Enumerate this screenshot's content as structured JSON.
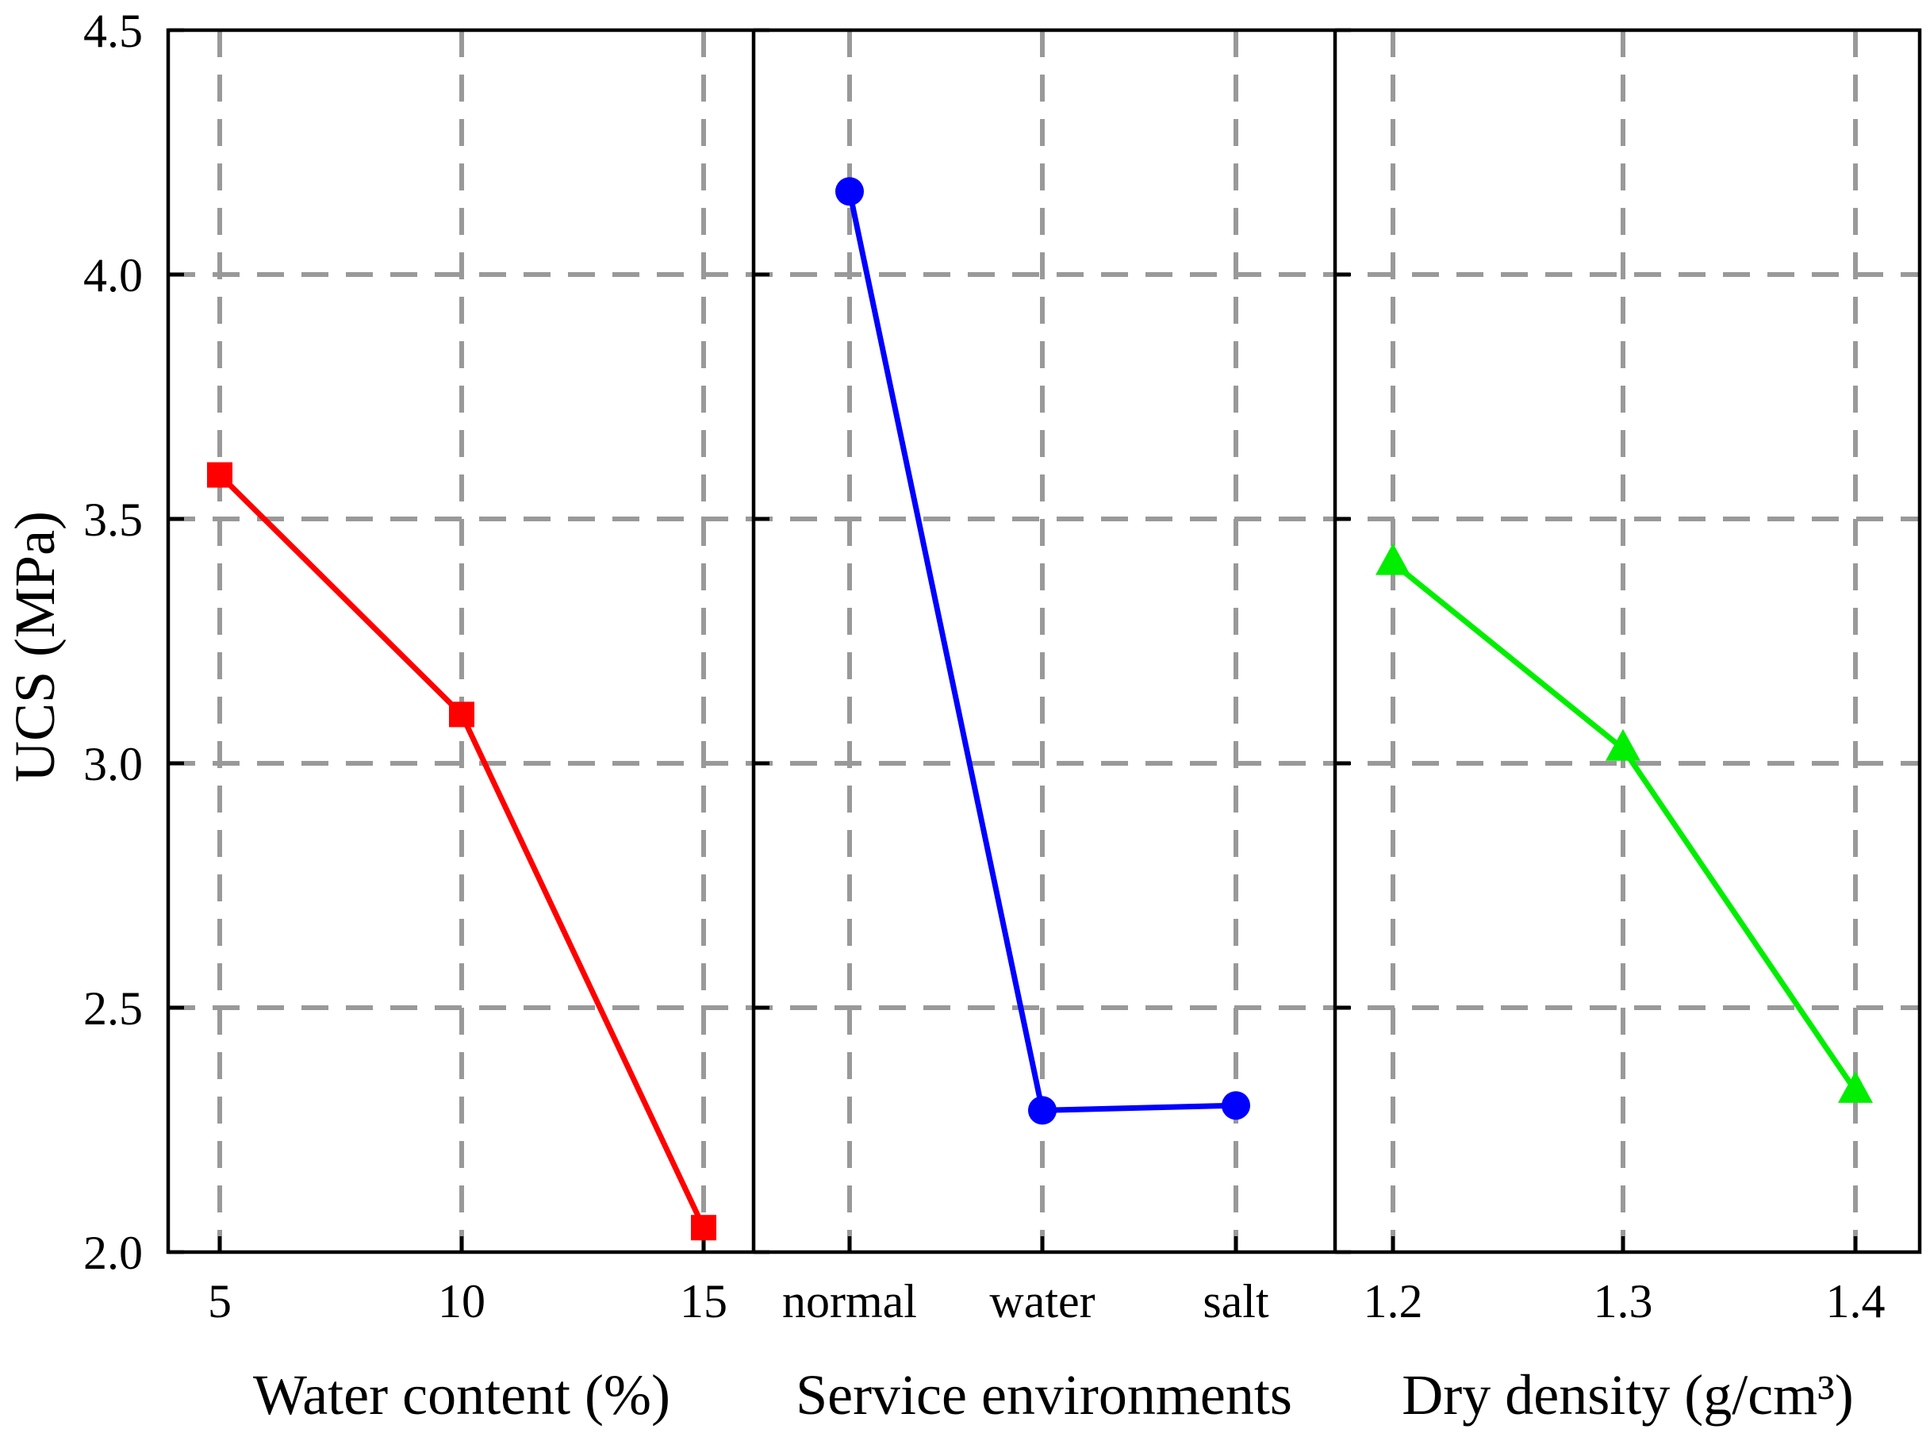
{
  "chart_data": {
    "type": "line",
    "ylabel": "UCS (MPa)",
    "ylim": [
      2.0,
      4.5
    ],
    "yticks": [
      "2.0",
      "2.5",
      "3.0",
      "3.5",
      "4.0",
      "4.5"
    ],
    "grid": true,
    "panels": [
      {
        "xlabel": "Water content (%)",
        "categories": [
          "5",
          "10",
          "15"
        ],
        "values": [
          3.59,
          3.1,
          2.05
        ],
        "color": "#ff0000",
        "marker": "square"
      },
      {
        "xlabel": "Service environments",
        "categories": [
          "normal",
          "water",
          "salt"
        ],
        "values": [
          4.17,
          2.29,
          2.3
        ],
        "color": "#0000ff",
        "marker": "circle"
      },
      {
        "xlabel": "Dry density (g/cm³)",
        "categories": [
          "1.2",
          "1.3",
          "1.4"
        ],
        "values": [
          3.41,
          3.03,
          2.33
        ],
        "color": "#00ee00",
        "marker": "triangle"
      }
    ]
  }
}
